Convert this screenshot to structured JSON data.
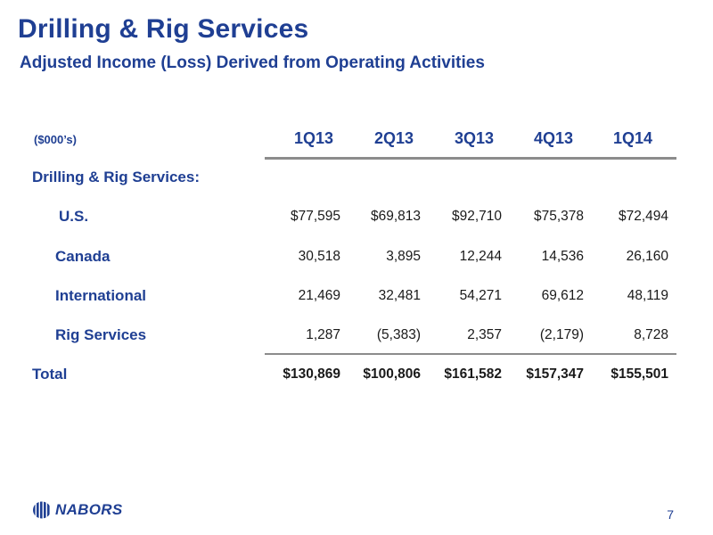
{
  "header": {
    "title": "Drilling & Rig Services",
    "subtitle": "Adjusted Income (Loss) Derived from Operating Activities"
  },
  "table": {
    "unit_label": "($000’s)",
    "columns": [
      "1Q13",
      "2Q13",
      "3Q13",
      "4Q13",
      "1Q14"
    ],
    "section_label": "Drilling & Rig Services:",
    "rows": [
      {
        "label": "U.S.",
        "values": [
          "$77,595",
          "$69,813",
          "$92,710",
          "$75,378",
          "$72,494"
        ]
      },
      {
        "label": "Canada",
        "values": [
          "30,518",
          "3,895",
          "12,244",
          "14,536",
          "26,160"
        ]
      },
      {
        "label": "International",
        "values": [
          "21,469",
          "32,481",
          "54,271",
          "69,612",
          "48,119"
        ]
      },
      {
        "label": "Rig Services",
        "values": [
          "1,287",
          "(5,383)",
          "2,357",
          "(2,179)",
          "8,728"
        ]
      }
    ],
    "total": {
      "label": "Total",
      "values": [
        "$130,869",
        "$100,806",
        "$161,582",
        "$157,347",
        "$155,501"
      ]
    }
  },
  "footer": {
    "logo_text": "NABORS",
    "logo_icon": "nabors-stripes-globe-icon",
    "page_number": "7"
  },
  "colors": {
    "brand_blue": "#1f3f93",
    "rule_gray": "#8c8c8c"
  }
}
